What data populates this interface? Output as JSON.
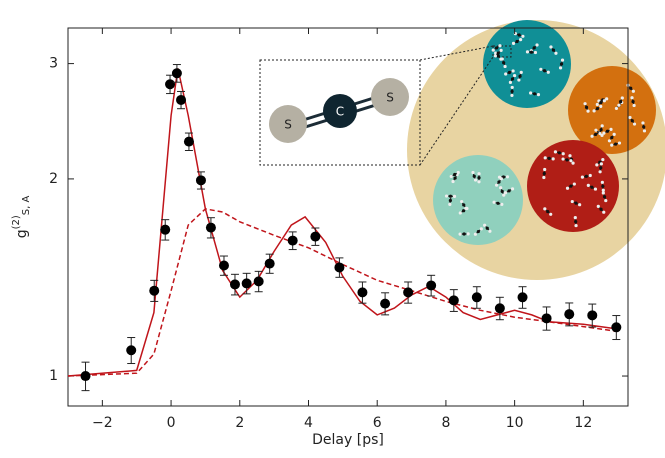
{
  "chart_data": {
    "type": "scatter",
    "x_label": "Delay [ps]",
    "y_label": {
      "base": "g",
      "sup": "(2)",
      "sub": "S, A"
    },
    "log_y": true,
    "xlim": [
      -3,
      13.3
    ],
    "ylim": [
      0.9,
      3.4
    ],
    "xticks": [
      {
        "value": -2,
        "label": "−2"
      },
      0,
      2,
      4,
      6,
      8,
      10,
      12
    ],
    "yticks": [
      1,
      2,
      3
    ],
    "points": {
      "color": "#000000",
      "x": [
        -2.49,
        -1.16,
        -0.49,
        -0.17,
        -0.03,
        0.17,
        0.29,
        0.52,
        0.87,
        1.16,
        1.54,
        1.86,
        2.2,
        2.55,
        2.87,
        3.54,
        4.2,
        4.9,
        5.57,
        6.23,
        6.9,
        7.57,
        8.23,
        8.9,
        9.57,
        10.23,
        10.93,
        11.59,
        12.26,
        12.96
      ],
      "values": [
        1.0,
        1.095,
        1.35,
        1.673,
        2.79,
        2.9,
        2.64,
        2.28,
        1.99,
        1.685,
        1.475,
        1.38,
        1.385,
        1.395,
        1.485,
        1.61,
        1.633,
        1.465,
        1.342,
        1.29,
        1.342,
        1.375,
        1.305,
        1.319,
        1.269,
        1.319,
        1.225,
        1.243,
        1.238,
        1.187
      ],
      "errors": [
        0.05,
        0.05,
        0.05,
        0.06,
        0.09,
        0.09,
        0.08,
        0.07,
        0.06,
        0.06,
        0.05,
        0.05,
        0.05,
        0.05,
        0.05,
        0.05,
        0.05,
        0.05,
        0.05,
        0.05,
        0.05,
        0.05,
        0.05,
        0.05,
        0.05,
        0.05,
        0.05,
        0.05,
        0.05,
        0.05
      ]
    },
    "lines": [
      {
        "color": "#c0151b",
        "dash": false,
        "x": [
          -3,
          -1,
          -0.5,
          0,
          0.2,
          0.5,
          1,
          1.5,
          2,
          2.5,
          3,
          3.5,
          3.9,
          4.5,
          5,
          5.5,
          6,
          6.5,
          7,
          7.5,
          8,
          8.5,
          9,
          9.5,
          10,
          10.5,
          11,
          12,
          13
        ],
        "values": [
          1.0,
          1.02,
          1.25,
          2.5,
          2.95,
          2.5,
          1.8,
          1.45,
          1.32,
          1.4,
          1.55,
          1.7,
          1.75,
          1.6,
          1.42,
          1.3,
          1.24,
          1.27,
          1.33,
          1.37,
          1.32,
          1.25,
          1.22,
          1.24,
          1.26,
          1.24,
          1.21,
          1.2,
          1.18
        ]
      },
      {
        "color": "#c0151b",
        "dash": true,
        "x": [
          -3,
          -1,
          -0.5,
          0,
          0.5,
          1,
          1.5,
          2,
          3,
          4,
          5,
          6,
          7,
          8,
          9,
          10,
          11,
          12,
          13
        ],
        "values": [
          1.0,
          1.01,
          1.08,
          1.35,
          1.7,
          1.8,
          1.78,
          1.72,
          1.64,
          1.57,
          1.48,
          1.4,
          1.35,
          1.3,
          1.26,
          1.23,
          1.21,
          1.19,
          1.17
        ]
      }
    ],
    "inset": {
      "atoms": [
        "S",
        "C",
        "S"
      ]
    }
  }
}
